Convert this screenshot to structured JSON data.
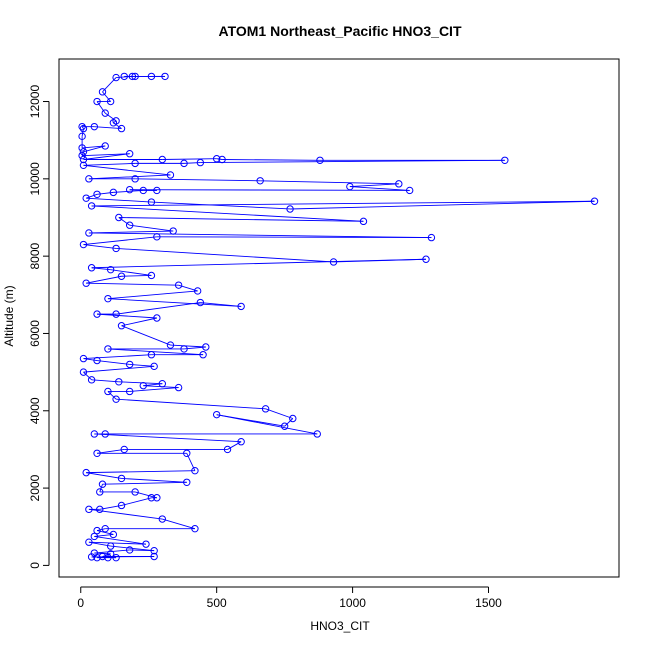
{
  "chart_data": {
    "type": "scatter",
    "title": "ATOM1 Northeast_Pacific HNO3_CIT",
    "xlabel": "HNO3_CIT",
    "ylabel": "Altitude (m)",
    "xlim": [
      -80,
      1980
    ],
    "ylim": [
      -300,
      13100
    ],
    "x_ticks": [
      0,
      500,
      1000,
      1500
    ],
    "y_ticks": [
      0,
      2000,
      4000,
      6000,
      8000,
      10000,
      12000
    ],
    "grid": false,
    "legend": "none",
    "style": {
      "color": "#0000ff",
      "marker": "open-circle",
      "lines": true
    },
    "series": [
      {
        "points": [
          [
            160,
            12650
          ],
          [
            200,
            12650
          ],
          [
            260,
            12650
          ],
          [
            310,
            12650
          ],
          [
            190,
            12650
          ],
          [
            130,
            12620
          ],
          [
            80,
            12250
          ],
          [
            110,
            12000
          ],
          [
            60,
            12000
          ],
          [
            90,
            11700
          ],
          [
            130,
            11500
          ],
          [
            120,
            11450
          ],
          [
            150,
            11300
          ],
          [
            50,
            11350
          ],
          [
            5,
            11350
          ],
          [
            10,
            11300
          ],
          [
            5,
            11100
          ],
          [
            5,
            10800
          ],
          [
            90,
            10850
          ],
          [
            10,
            10700
          ],
          [
            5,
            10600
          ],
          [
            180,
            10650
          ],
          [
            10,
            10500
          ],
          [
            300,
            10500
          ],
          [
            500,
            10520
          ],
          [
            520,
            10500
          ],
          [
            880,
            10480
          ],
          [
            1560,
            10480
          ],
          [
            440,
            10420
          ],
          [
            380,
            10400
          ],
          [
            200,
            10400
          ],
          [
            10,
            10350
          ],
          [
            330,
            10100
          ],
          [
            30,
            10000
          ],
          [
            200,
            10000
          ],
          [
            660,
            9950
          ],
          [
            1170,
            9870
          ],
          [
            990,
            9800
          ],
          [
            1210,
            9700
          ],
          [
            180,
            9720
          ],
          [
            280,
            9700
          ],
          [
            230,
            9700
          ],
          [
            120,
            9650
          ],
          [
            60,
            9600
          ],
          [
            20,
            9500
          ],
          [
            260,
            9400
          ],
          [
            770,
            9220
          ],
          [
            1890,
            9420
          ],
          [
            40,
            9300
          ],
          [
            1040,
            8900
          ],
          [
            140,
            9000
          ],
          [
            180,
            8800
          ],
          [
            340,
            8650
          ],
          [
            30,
            8600
          ],
          [
            1290,
            8480
          ],
          [
            280,
            8500
          ],
          [
            10,
            8300
          ],
          [
            130,
            8200
          ],
          [
            930,
            7850
          ],
          [
            1270,
            7920
          ],
          [
            40,
            7700
          ],
          [
            110,
            7650
          ],
          [
            260,
            7500
          ],
          [
            150,
            7480
          ],
          [
            20,
            7300
          ],
          [
            360,
            7250
          ],
          [
            430,
            7100
          ],
          [
            100,
            6900
          ],
          [
            590,
            6700
          ],
          [
            440,
            6800
          ],
          [
            130,
            6500
          ],
          [
            60,
            6500
          ],
          [
            280,
            6400
          ],
          [
            150,
            6200
          ],
          [
            330,
            5700
          ],
          [
            460,
            5650
          ],
          [
            380,
            5600
          ],
          [
            100,
            5600
          ],
          [
            450,
            5450
          ],
          [
            260,
            5450
          ],
          [
            10,
            5350
          ],
          [
            60,
            5300
          ],
          [
            180,
            5200
          ],
          [
            270,
            5150
          ],
          [
            10,
            5000
          ],
          [
            40,
            4800
          ],
          [
            140,
            4750
          ],
          [
            300,
            4700
          ],
          [
            230,
            4650
          ],
          [
            360,
            4600
          ],
          [
            180,
            4500
          ],
          [
            100,
            4500
          ],
          [
            130,
            4300
          ],
          [
            680,
            4050
          ],
          [
            780,
            3800
          ],
          [
            750,
            3600
          ],
          [
            500,
            3900
          ],
          [
            870,
            3400
          ],
          [
            90,
            3400
          ],
          [
            50,
            3400
          ],
          [
            590,
            3200
          ],
          [
            540,
            3000
          ],
          [
            160,
            3000
          ],
          [
            60,
            2900
          ],
          [
            390,
            2900
          ],
          [
            420,
            2450
          ],
          [
            20,
            2400
          ],
          [
            150,
            2250
          ],
          [
            390,
            2150
          ],
          [
            80,
            2100
          ],
          [
            70,
            1900
          ],
          [
            200,
            1900
          ],
          [
            280,
            1750
          ],
          [
            260,
            1750
          ],
          [
            150,
            1550
          ],
          [
            70,
            1450
          ],
          [
            30,
            1450
          ],
          [
            300,
            1200
          ],
          [
            420,
            950
          ],
          [
            90,
            950
          ],
          [
            60,
            900
          ],
          [
            120,
            800
          ],
          [
            50,
            750
          ],
          [
            240,
            550
          ],
          [
            30,
            600
          ],
          [
            110,
            500
          ],
          [
            270,
            380
          ],
          [
            180,
            400
          ],
          [
            50,
            320
          ],
          [
            110,
            300
          ],
          [
            80,
            230
          ],
          [
            270,
            230
          ],
          [
            40,
            220
          ],
          [
            130,
            200
          ],
          [
            100,
            200
          ],
          [
            60,
            200
          ]
        ]
      }
    ]
  }
}
